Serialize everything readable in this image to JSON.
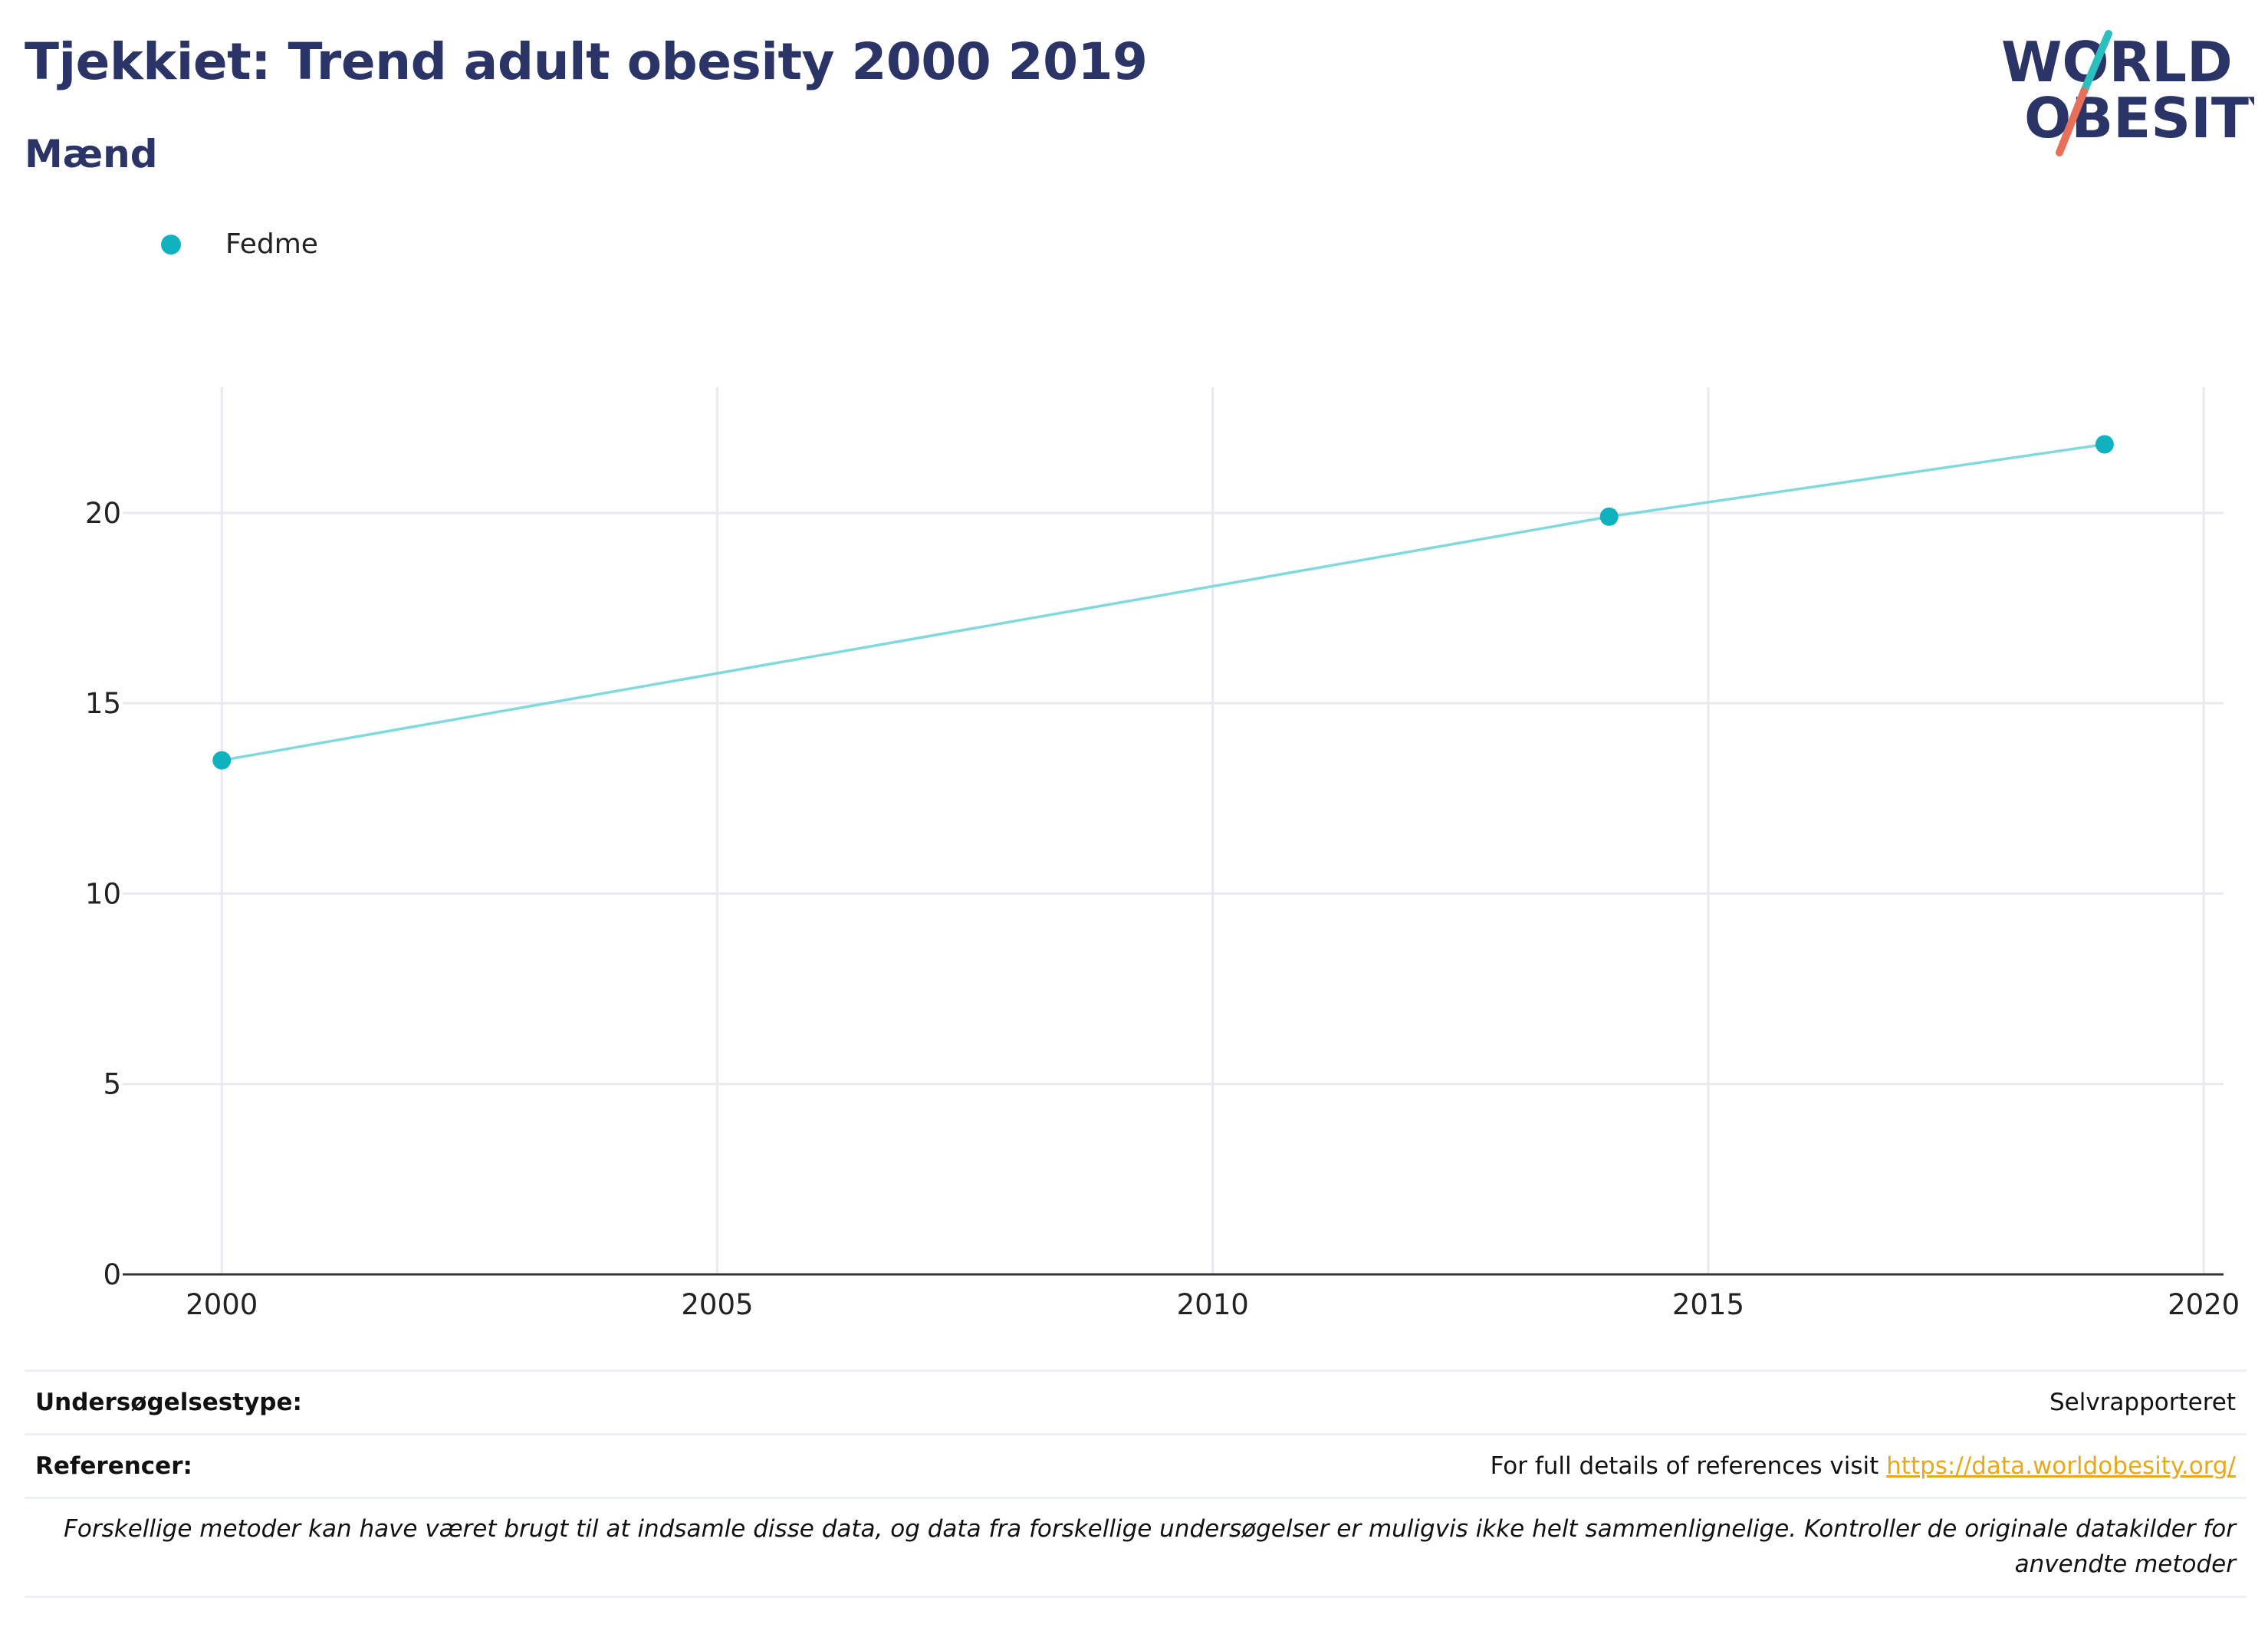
{
  "header": {
    "title": "Tjekkiet: Trend adult obesity 2000 2019",
    "subtitle": "Mænd"
  },
  "logo": {
    "line1": "WORLD",
    "line2": "OBESITY"
  },
  "colors": {
    "series": "#0fb2be",
    "line": "#7fd9dd",
    "title": "#2a3466",
    "link": "#e8a81c",
    "grid": "#e9e9ef"
  },
  "chart_data": {
    "type": "line",
    "series": [
      {
        "name": "Fedme",
        "x": [
          2000,
          2014,
          2019
        ],
        "y": [
          13.5,
          19.9,
          21.8
        ]
      }
    ],
    "xlim": [
      1999,
      2020.2
    ],
    "ylim": [
      0,
      23.3
    ],
    "xticks": [
      2000,
      2005,
      2010,
      2015,
      2020
    ],
    "yticks": [
      0,
      5,
      10,
      15,
      20
    ],
    "grid": true,
    "legend": "top-left",
    "xlabel": "",
    "ylabel": ""
  },
  "footer": {
    "survey_label": "Undersøgelsestype:",
    "survey_value": "Selvrapporteret",
    "ref_label": "Referencer:",
    "ref_text": "For full details of references visit ",
    "ref_link": "https://data.worldobesity.org/",
    "note": "Forskellige metoder kan have været brugt til at indsamle disse data, og data fra forskellige undersøgelser er muligvis ikke helt sammenlignelige. Kontroller de originale datakilder for anvendte metoder"
  }
}
